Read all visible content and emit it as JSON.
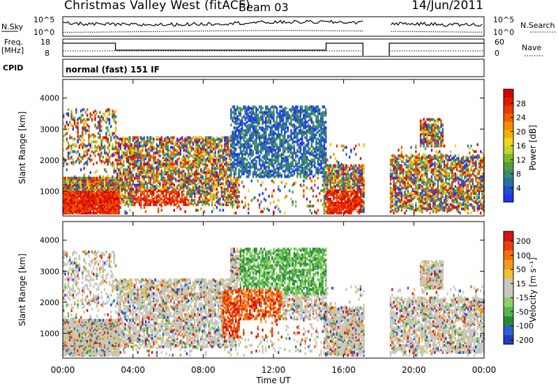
{
  "header": {
    "title": "Christmas Valley West (fitACF)",
    "beam": "Beam 03",
    "date": "14/Jun/2011"
  },
  "top_panels": {
    "nsky_label": "N.Sky",
    "nsky_ticks": [
      "10^5",
      "10^0"
    ],
    "nsearch_label": "N.Search",
    "nsearch_ticks": [
      "10^5",
      "10^0"
    ],
    "freq_label_line1": "Freq.",
    "freq_label_line2": "[MHz]",
    "freq_ticks": [
      "18",
      "8"
    ],
    "nave_label": "Nave",
    "nave_ticks": [
      "60",
      "0"
    ],
    "cpid_label": "CPID",
    "cpid_text": "normal (fast) 151 IF"
  },
  "chart_data": [
    {
      "type": "heatmap",
      "name": "power-panel",
      "ylabel": "Slant Range [km]",
      "yticks": [
        "1000",
        "2000",
        "3000",
        "4000"
      ],
      "ylim": [
        200,
        4600
      ],
      "xlim_hours": [
        0,
        24
      ],
      "data_gaps_hours": [
        [
          17.1,
          18.6
        ]
      ],
      "colorbar": {
        "label": "Power [dB]",
        "ticks": [
          "4",
          "8",
          "12",
          "16",
          "20",
          "24",
          "28"
        ],
        "colors": [
          "#2030ff",
          "#2050c8",
          "#2a6fa8",
          "#3a8a70",
          "#4f9e3a",
          "#7ab82e",
          "#bcd530",
          "#f2d21a",
          "#f5b000",
          "#f58a00",
          "#f06000",
          "#e83a00",
          "#e01a00",
          "#d40000"
        ]
      }
    },
    {
      "type": "heatmap",
      "name": "velocity-panel",
      "ylabel": "Slant Range [km]",
      "yticks": [
        "1000",
        "2000",
        "3000",
        "4000"
      ],
      "ylim": [
        200,
        4600
      ],
      "xlim_hours": [
        0,
        24
      ],
      "data_gaps_hours": [
        [
          17.1,
          18.6
        ]
      ],
      "colorbar": {
        "label": "Velocity [m s⁻¹]",
        "ticks": [
          "200",
          "100",
          "50",
          "15",
          "-15",
          "-50",
          "-100",
          "-200"
        ],
        "colors": [
          "#1f3fbf",
          "#2f5fd0",
          "#2b8a3a",
          "#56b84a",
          "#8fd06a",
          "#c8c8c0",
          "#c8c8c0",
          "#f0c030",
          "#f09a20",
          "#f07010",
          "#e84010",
          "#d81010"
        ]
      }
    }
  ],
  "x_axis": {
    "label": "Time UT",
    "ticks": [
      "00:00",
      "04:00",
      "08:00",
      "12:00",
      "16:00",
      "20:00",
      "00:00"
    ]
  }
}
